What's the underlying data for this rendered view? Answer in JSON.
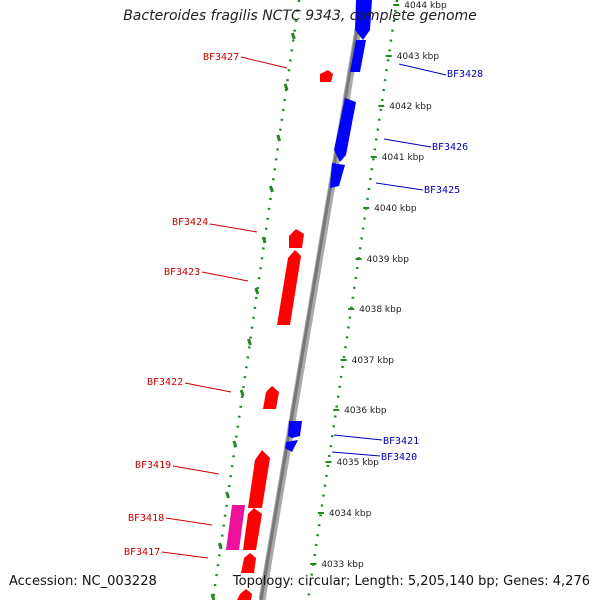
{
  "title": "Bacteroides fragilis NCTC 9343, complete genome",
  "footer": {
    "accession": "Accession: NC_003228",
    "summary": "Topology: circular; Length: 5,205,140 bp; Genes: 4,276"
  },
  "colors": {
    "forward_gene": "#ff0000",
    "reverse_gene": "#0000ff",
    "other_gene": "#ee1199",
    "forward_label": "#cc0000",
    "reverse_label": "#0000bb",
    "backbone": "#888888",
    "tick": "#228822"
  },
  "ticks": [
    "4044 kbp",
    "4043 kbp",
    "4042 kbp",
    "4041 kbp",
    "4040 kbp",
    "4039 kbp",
    "4038 kbp",
    "4037 kbp",
    "4036 kbp",
    "4035 kbp",
    "4034 kbp",
    "4033 kbp"
  ],
  "labels": {
    "left": [
      "BF3427",
      "BF3424",
      "BF3423",
      "BF3422",
      "BF3419",
      "BF3418",
      "BF3417"
    ],
    "right": [
      "BF3428",
      "BF3426",
      "BF3425",
      "BF3421",
      "BF3420"
    ]
  }
}
